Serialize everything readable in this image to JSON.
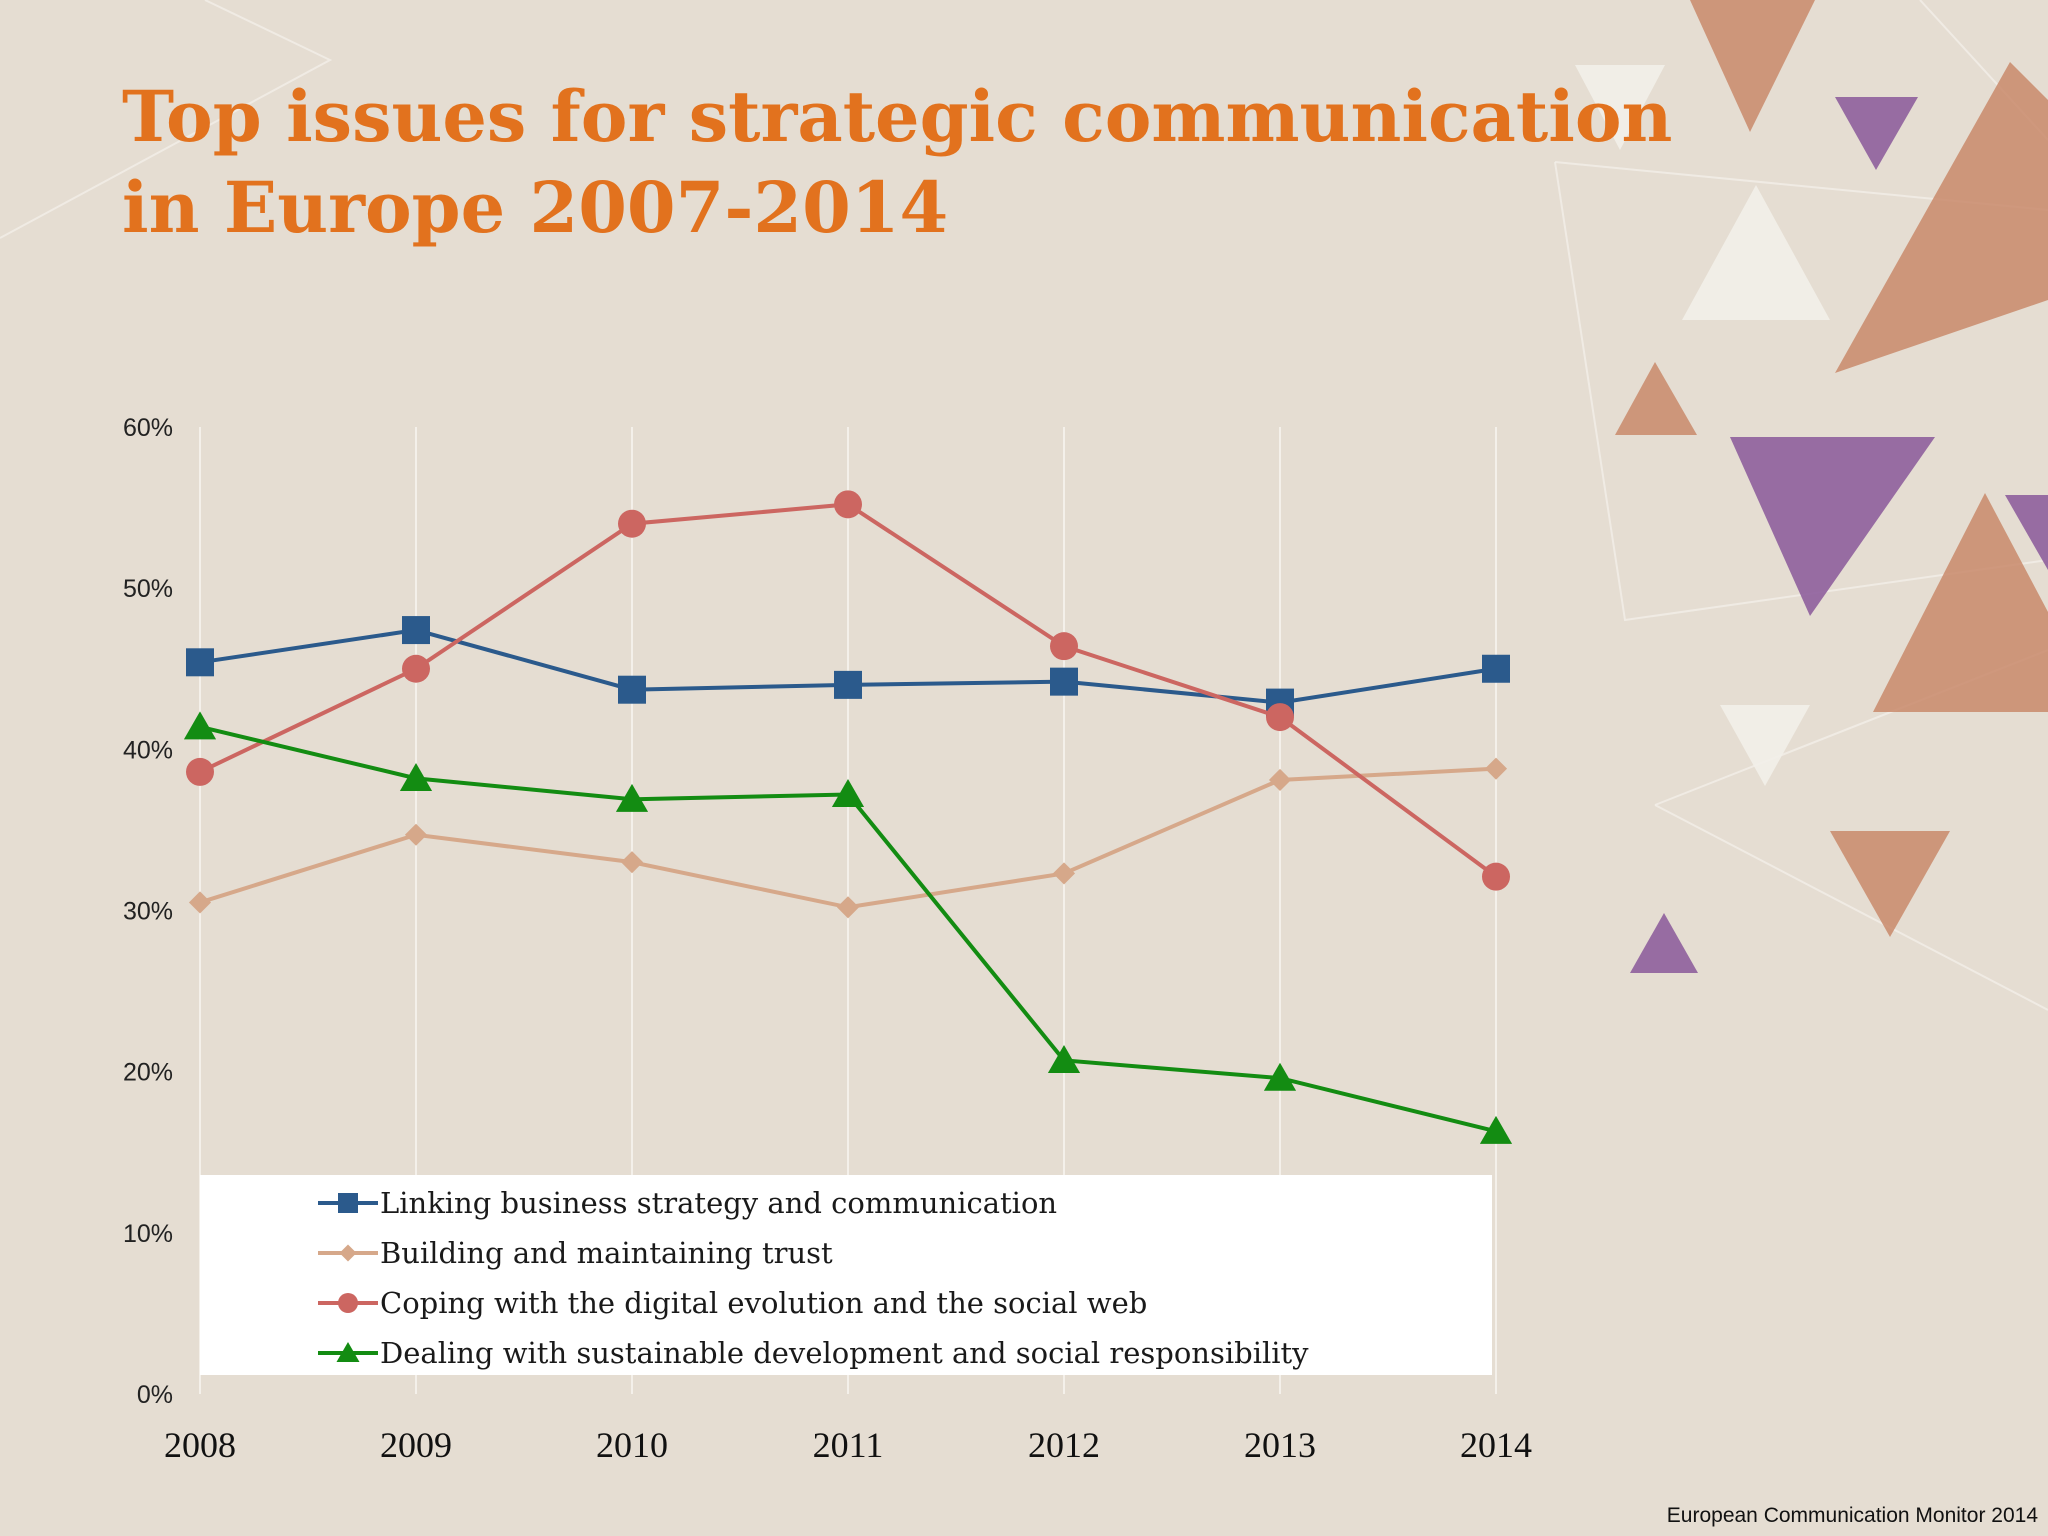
{
  "title_lines": [
    "Top issues for strategic communication",
    "in Europe 2007-2014"
  ],
  "source": "European Communication Monitor 2014",
  "colors": {
    "background": "#e5ddd2",
    "title": "#e2721e",
    "deco_orange": "#c9896b",
    "deco_purple": "#8e5f9c",
    "deco_white": "#f2efe9"
  },
  "chart_data": {
    "type": "line",
    "title": "Top issues for strategic communication in Europe 2007-2014",
    "x": [
      "2008",
      "2009",
      "2010",
      "2011",
      "2012",
      "2013",
      "2014"
    ],
    "ylim": [
      0,
      60
    ],
    "yticks": [
      0,
      10,
      20,
      30,
      40,
      50,
      60
    ],
    "ytick_labels": [
      "0%",
      "10%",
      "20%",
      "30%",
      "40%",
      "50%",
      "60%"
    ],
    "grid": "vertical",
    "legend_position": "bottom (inside plot)",
    "series": [
      {
        "name": "Linking business strategy and communication",
        "color": "#2b5a8c",
        "marker": "square",
        "values": [
          45.4,
          47.4,
          43.7,
          44.0,
          44.2,
          42.9,
          45.0
        ]
      },
      {
        "name": "Building and maintaining trust",
        "color": "#d6a88a",
        "marker": "diamond",
        "values": [
          30.5,
          34.7,
          33.0,
          30.2,
          32.3,
          38.1,
          38.8
        ]
      },
      {
        "name": "Coping with the digital evolution and the social web",
        "color": "#cc6661",
        "marker": "circle",
        "values": [
          38.6,
          45.0,
          54.0,
          55.2,
          46.4,
          42.0,
          32.1
        ]
      },
      {
        "name": "Dealing with sustainable development and social responsibility",
        "color": "#138c12",
        "marker": "triangle",
        "values": [
          41.4,
          38.2,
          36.9,
          37.2,
          20.7,
          19.6,
          16.3
        ]
      }
    ]
  }
}
